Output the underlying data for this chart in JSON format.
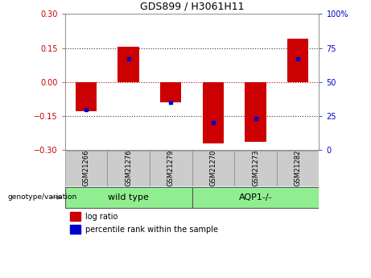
{
  "title": "GDS899 / H3061H11",
  "samples": [
    "GSM21266",
    "GSM21276",
    "GSM21279",
    "GSM21270",
    "GSM21273",
    "GSM21282"
  ],
  "log_ratios": [
    -0.13,
    0.155,
    -0.09,
    -0.27,
    -0.265,
    0.19
  ],
  "percentile_ranks": [
    30,
    67,
    35,
    20,
    23,
    67
  ],
  "group_bg_color": "#90ee90",
  "sample_box_color": "#cccccc",
  "bar_color": "#cc0000",
  "dot_color": "#0000cc",
  "ylim": [
    -0.3,
    0.3
  ],
  "yticks_left": [
    -0.3,
    -0.15,
    0,
    0.15,
    0.3
  ],
  "yticks_right": [
    0,
    25,
    50,
    75,
    100
  ],
  "hline_zero_color": "#cc0000",
  "hline_dotted_color": "#333333",
  "bar_width": 0.5,
  "legend_label_ratio": "log ratio",
  "legend_label_pct": "percentile rank within the sample",
  "genotype_label": "genotype/variation",
  "group1_label": "wild type",
  "group2_label": "AQP1-/-"
}
